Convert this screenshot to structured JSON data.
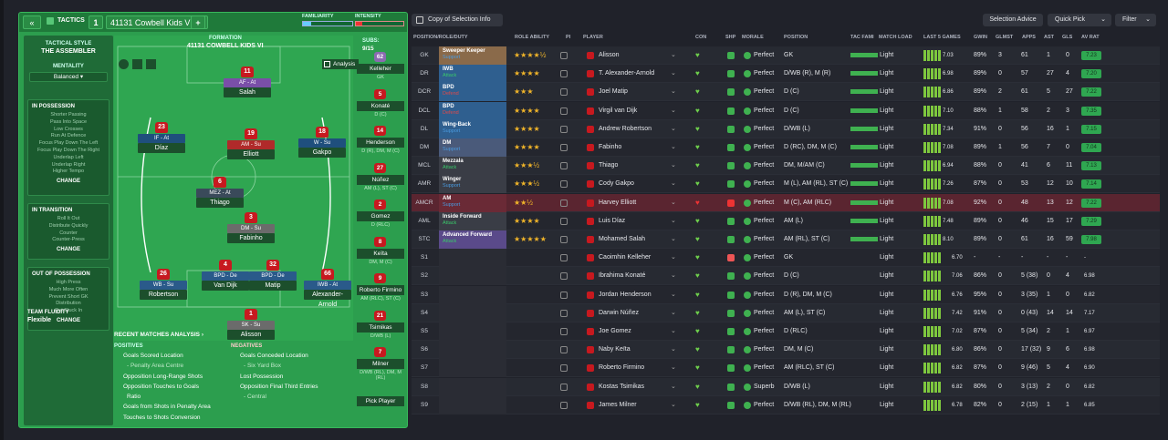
{
  "header": {
    "collapse_label": "«",
    "tactics_label": "TACTICS",
    "slot_number": "1",
    "tactic_name": "41131 Cowbell Kids VI",
    "add_label": "+",
    "familiarity_label": "FAMILIARITY",
    "intensity_label": "INTENSITY"
  },
  "style": {
    "tactical_style_label": "TACTICAL STYLE",
    "tactical_style": "THE ASSEMBLER",
    "mentality_label": "MENTALITY",
    "mentality": "Balanced",
    "in_possession": {
      "title": "IN POSSESSION",
      "items": [
        "Shorter Passing",
        "Pass Into Space",
        "Low Crosses",
        "Run At Defence",
        "Focus Play Down The Left",
        "Focus Play Down The Right",
        "Underlap Left",
        "Underlap Right",
        "Higher Tempo"
      ],
      "change": "CHANGE"
    },
    "in_transition": {
      "title": "IN TRANSITION",
      "items": [
        "Roll It Out",
        "Distribute Quickly",
        "Counter",
        "Counter-Press"
      ],
      "change": "CHANGE"
    },
    "out_of_possession": {
      "title": "OUT OF POSSESSION",
      "items": [
        "High Press",
        "Much More Often",
        "Prevent Short GK",
        "Distribution",
        "Get Stuck In"
      ],
      "change": "CHANGE"
    },
    "team_fluidity_label": "TEAM FLUIDITY",
    "team_fluidity": "Flexible"
  },
  "formation": {
    "label": "FORMATION",
    "name": "41131 COWBELL KIDS VI",
    "analysis_label": "Analysis",
    "subs_label": "SUBS:",
    "subs_count": "9/15"
  },
  "pitch_players": [
    {
      "num": "11",
      "role": "AF - At",
      "name": "Salah",
      "color": "#7a4fa8"
    },
    {
      "num": "23",
      "role": "IF - At",
      "name": "Díaz",
      "color": "#1f4f7d"
    },
    {
      "num": "19",
      "role": "AM - Su",
      "name": "Elliott",
      "color": "#b02a2a"
    },
    {
      "num": "18",
      "role": "W - Su",
      "name": "Gakpo",
      "color": "#1f4f7d"
    },
    {
      "num": "6",
      "role": "MEZ - At",
      "name": "Thiago",
      "color": "#3a4a5a"
    },
    {
      "num": "3",
      "role": "DM - Su",
      "name": "Fabinho",
      "color": "#6b6b6b"
    },
    {
      "num": "26",
      "role": "WB - Su",
      "name": "Robertson",
      "color": "#2a5a8a"
    },
    {
      "num": "4",
      "role": "BPD - De",
      "name": "Van Dijk",
      "color": "#2a5a8a"
    },
    {
      "num": "32",
      "role": "BPD - De",
      "name": "Matip",
      "color": "#2a5a8a"
    },
    {
      "num": "66",
      "role": "IWB - At",
      "name": "Alexander-Arnold",
      "color": "#2a5a8a"
    },
    {
      "num": "1",
      "role": "SK - Su",
      "name": "Alisson",
      "color": "#6b6b6b"
    }
  ],
  "subs": [
    {
      "num": "62",
      "name": "Kelleher",
      "pos": "GK"
    },
    {
      "num": "5",
      "name": "Konaté",
      "pos": "D (C)"
    },
    {
      "num": "14",
      "name": "Henderson",
      "pos": "D (R), DM, M (C)"
    },
    {
      "num": "27",
      "name": "Núñez",
      "pos": "AM (L), ST (C)"
    },
    {
      "num": "2",
      "name": "Gomez",
      "pos": "D (RLC)"
    },
    {
      "num": "8",
      "name": "Keïta",
      "pos": "DM, M (C)"
    },
    {
      "num": "9",
      "name": "Roberto Firmino",
      "pos": "AM (RLC), ST (C)"
    },
    {
      "num": "21",
      "name": "Tsimikas",
      "pos": "D/WB (L)"
    },
    {
      "num": "7",
      "name": "Milner",
      "pos": "D/WB (RL), DM, M (RL)"
    },
    {
      "num": "",
      "name": "Pick Player",
      "pos": ""
    }
  ],
  "analysis": {
    "title": "RECENT MATCHES ANALYSIS ›",
    "positives_label": "POSITIVES",
    "negatives_label": "NEGATIVES",
    "positives": [
      "Goals Scored Location",
      "- Penalty Area Centre",
      "Opposition Long-Range Shots",
      "Opposition Touches to Goals",
      "Ratio",
      "Goals from Shots in Penalty Area",
      "Touches to Shots Conversion"
    ],
    "negatives": [
      "Goals Conceded Location",
      "- Six Yard Box",
      "Lost Possession",
      "Opposition Final Third Entries",
      "- Central"
    ]
  },
  "toolbar": {
    "copy_label": "Copy of Selection Info",
    "selection_advice": "Selection Advice",
    "quick_pick": "Quick Pick",
    "filter": "Filter"
  },
  "columns": [
    "POSITION/ROLE/DUTY",
    "ROLE ABILITY",
    "PI",
    "PLAYER",
    "CON",
    "SHP",
    "MORALE",
    "POSITION",
    "TAC FAMI",
    "MATCH LOAD",
    "LAST 5 GAMES",
    "GWIN",
    "GLMST",
    "APPS",
    "AST",
    "GLS",
    "AV RAT"
  ],
  "rows": [
    {
      "pos": "GK",
      "role": "Sweeper Keeper",
      "duty": "Support",
      "stars": 4.5,
      "player": "Alisson",
      "morale": "Perfect",
      "position": "GK",
      "load": "Light",
      "last5": "7.03",
      "gwin": "89%",
      "glmst": "3",
      "apps": "61",
      "ast": "1",
      "gls": "0",
      "avrat": "7.23"
    },
    {
      "pos": "DR",
      "role": "IWB",
      "duty": "Attack",
      "stars": 4,
      "player": "T. Alexander-Arnold",
      "morale": "Perfect",
      "position": "D/WB (R), M (R)",
      "load": "Light",
      "last5": "6.98",
      "gwin": "89%",
      "glmst": "0",
      "apps": "57",
      "ast": "27",
      "gls": "4",
      "avrat": "7.20"
    },
    {
      "pos": "DCR",
      "role": "BPD",
      "duty": "Defend",
      "stars": 3,
      "player": "Joel Matip",
      "morale": "Perfect",
      "position": "D (C)",
      "load": "Light",
      "last5": "6.86",
      "gwin": "89%",
      "glmst": "2",
      "apps": "61",
      "ast": "5",
      "gls": "27",
      "avrat": "7.22"
    },
    {
      "pos": "DCL",
      "role": "BPD",
      "duty": "Defend",
      "stars": 4,
      "player": "Virgil van Dijk",
      "morale": "Perfect",
      "position": "D (C)",
      "load": "Light",
      "last5": "7.10",
      "gwin": "88%",
      "glmst": "1",
      "apps": "58",
      "ast": "2",
      "gls": "3",
      "avrat": "7.35"
    },
    {
      "pos": "DL",
      "role": "Wing-Back",
      "duty": "Support",
      "stars": 4,
      "player": "Andrew Robertson",
      "morale": "Perfect",
      "position": "D/WB (L)",
      "load": "Light",
      "last5": "7.34",
      "gwin": "91%",
      "glmst": "0",
      "apps": "56",
      "ast": "16",
      "gls": "1",
      "avrat": "7.15"
    },
    {
      "pos": "DM",
      "role": "DM",
      "duty": "Support",
      "stars": 4,
      "player": "Fabinho",
      "morale": "Perfect",
      "position": "D (RC), DM, M (C)",
      "load": "Light",
      "last5": "7.08",
      "gwin": "89%",
      "glmst": "1",
      "apps": "56",
      "ast": "7",
      "gls": "0",
      "avrat": "7.04"
    },
    {
      "pos": "MCL",
      "role": "Mezzala",
      "duty": "Attack",
      "stars": 3.5,
      "player": "Thiago",
      "morale": "Perfect",
      "position": "DM, M/AM (C)",
      "load": "Light",
      "last5": "6.94",
      "gwin": "88%",
      "glmst": "0",
      "apps": "41",
      "ast": "6",
      "gls": "11",
      "avrat": "7.13"
    },
    {
      "pos": "AMR",
      "role": "Winger",
      "duty": "Support",
      "stars": 3.5,
      "player": "Cody Gakpo",
      "morale": "Perfect",
      "position": "M (L), AM (RL), ST (C)",
      "load": "Light",
      "last5": "7.26",
      "gwin": "87%",
      "glmst": "0",
      "apps": "53",
      "ast": "12",
      "gls": "10",
      "avrat": "7.14"
    },
    {
      "pos": "AMCR",
      "role": "AM",
      "duty": "Support",
      "stars": 2.5,
      "player": "Harvey Elliott",
      "morale": "Perfect",
      "position": "M (C), AM (RLC)",
      "load": "Light",
      "last5": "7.08",
      "gwin": "92%",
      "glmst": "0",
      "apps": "48",
      "ast": "13",
      "gls": "12",
      "avrat": "7.22"
    },
    {
      "pos": "AML",
      "role": "Inside Forward",
      "duty": "Attack",
      "stars": 4,
      "player": "Luis Díaz",
      "morale": "Perfect",
      "position": "AM (L)",
      "load": "Light",
      "last5": "7.48",
      "gwin": "89%",
      "glmst": "0",
      "apps": "46",
      "ast": "15",
      "gls": "17",
      "avrat": "7.29"
    },
    {
      "pos": "STC",
      "role": "Advanced Forward",
      "duty": "Attack",
      "stars": 5,
      "player": "Mohamed Salah",
      "morale": "Perfect",
      "position": "AM (RL), ST (C)",
      "load": "Light",
      "last5": "8.10",
      "gwin": "89%",
      "glmst": "0",
      "apps": "61",
      "ast": "16",
      "gls": "59",
      "avrat": "7.98"
    },
    {
      "pos": "S1",
      "role": "",
      "duty": "",
      "stars": 0,
      "player": "Caoimhin Kelleher",
      "morale": "Perfect",
      "position": "GK",
      "load": "Light",
      "last5": "6.70",
      "gwin": "-",
      "glmst": "-",
      "apps": "-",
      "ast": "-",
      "gls": "-",
      "avrat": "-"
    },
    {
      "pos": "S2",
      "role": "",
      "duty": "",
      "stars": 0,
      "player": "Ibrahima Konaté",
      "morale": "Perfect",
      "position": "D (C)",
      "load": "Light",
      "last5": "7.06",
      "gwin": "86%",
      "glmst": "0",
      "apps": "5 (38)",
      "ast": "0",
      "gls": "4",
      "avrat": "6.98"
    },
    {
      "pos": "S3",
      "role": "",
      "duty": "",
      "stars": 0,
      "player": "Jordan Henderson",
      "morale": "Perfect",
      "position": "D (R), DM, M (C)",
      "load": "Light",
      "last5": "6.76",
      "gwin": "95%",
      "glmst": "0",
      "apps": "3 (35)",
      "ast": "1",
      "gls": "0",
      "avrat": "6.82"
    },
    {
      "pos": "S4",
      "role": "",
      "duty": "",
      "stars": 0,
      "player": "Darwin Núñez",
      "morale": "Perfect",
      "position": "AM (L), ST (C)",
      "load": "Light",
      "last5": "7.42",
      "gwin": "91%",
      "glmst": "0",
      "apps": "0 (43)",
      "ast": "14",
      "gls": "14",
      "avrat": "7.17"
    },
    {
      "pos": "S5",
      "role": "",
      "duty": "",
      "stars": 0,
      "player": "Joe Gomez",
      "morale": "Perfect",
      "position": "D (RLC)",
      "load": "Light",
      "last5": "7.02",
      "gwin": "87%",
      "glmst": "0",
      "apps": "5 (34)",
      "ast": "2",
      "gls": "1",
      "avrat": "6.97"
    },
    {
      "pos": "S6",
      "role": "",
      "duty": "",
      "stars": 0,
      "player": "Naby Keïta",
      "morale": "Perfect",
      "position": "DM, M (C)",
      "load": "Light",
      "last5": "6.80",
      "gwin": "86%",
      "glmst": "0",
      "apps": "17 (32)",
      "ast": "9",
      "gls": "6",
      "avrat": "6.98"
    },
    {
      "pos": "S7",
      "role": "",
      "duty": "",
      "stars": 0,
      "player": "Roberto Firmino",
      "morale": "Perfect",
      "position": "AM (RLC), ST (C)",
      "load": "Light",
      "last5": "6.82",
      "gwin": "87%",
      "glmst": "0",
      "apps": "9 (46)",
      "ast": "5",
      "gls": "4",
      "avrat": "6.90"
    },
    {
      "pos": "S8",
      "role": "",
      "duty": "",
      "stars": 0,
      "player": "Kostas Tsimikas",
      "morale": "Superb",
      "position": "D/WB (L)",
      "load": "Light",
      "last5": "6.82",
      "gwin": "80%",
      "glmst": "0",
      "apps": "3 (13)",
      "ast": "2",
      "gls": "0",
      "avrat": "6.82"
    },
    {
      "pos": "S9",
      "role": "",
      "duty": "",
      "stars": 0,
      "player": "James Milner",
      "morale": "Perfect",
      "position": "D/WB (RL), DM, M (RL)",
      "load": "Light",
      "last5": "6.78",
      "gwin": "82%",
      "glmst": "0",
      "apps": "2 (15)",
      "ast": "1",
      "gls": "1",
      "avrat": "6.85"
    }
  ]
}
